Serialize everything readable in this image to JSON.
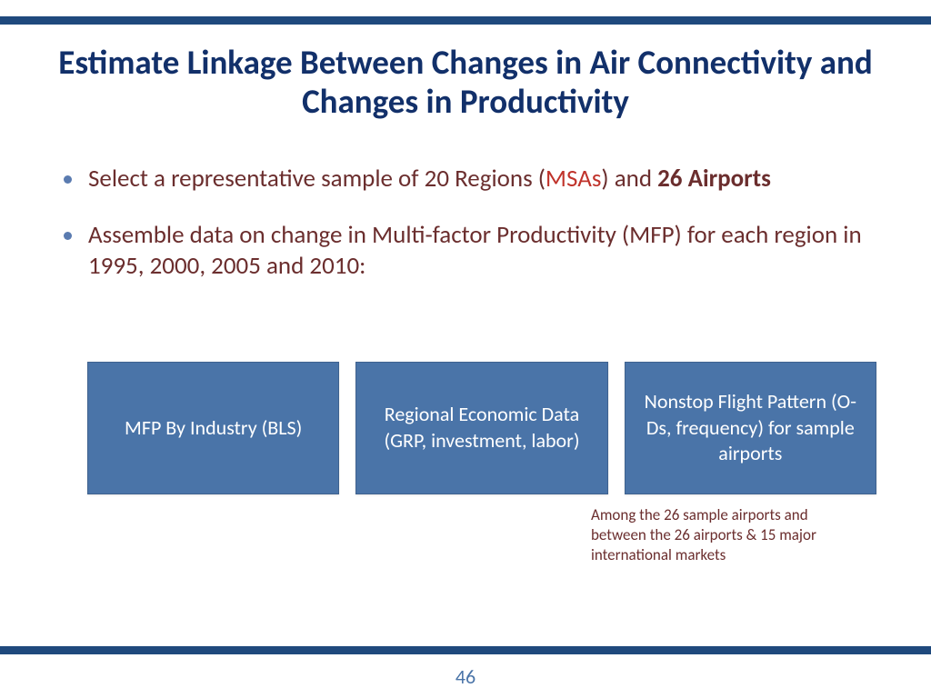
{
  "colors": {
    "bar": "#1f497d",
    "title": "#12306a",
    "bullet_dot": "#5a7bb0",
    "body_text": "#6b2e2e",
    "highlight": "#c0332b",
    "box_bg": "#4a74a8",
    "page_num": "#4a74a8",
    "white": "#ffffff"
  },
  "typography": {
    "title_size": 37,
    "body_size": 27,
    "box_size": 22,
    "footnote_size": 17,
    "page_num_size": 22
  },
  "title": "Estimate Linkage Between Changes in Air Connectivity and Changes in Productivity",
  "bullets": [
    {
      "parts": [
        {
          "text": "Select a  representative sample of 20 Regions (",
          "bold": false,
          "highlight": false
        },
        {
          "text": "MSAs",
          "bold": false,
          "highlight": true
        },
        {
          "text": ") and ",
          "bold": false,
          "highlight": false
        },
        {
          "text": "26 Airports",
          "bold": true,
          "highlight": false
        }
      ]
    },
    {
      "parts": [
        {
          "text": "Assemble data on change in Multi-factor Productivity (MFP) for each region in 1995, 2000, 2005 and 2010:",
          "bold": false,
          "highlight": false
        }
      ]
    }
  ],
  "boxes": [
    "MFP By Industry (BLS)",
    "Regional Economic Data (GRP, investment, labor)",
    "Nonstop Flight Pattern (O-Ds, frequency) for sample airports"
  ],
  "footnote": "Among the 26 sample airports and between the 26 airports & 15 major international markets",
  "page_number": "46"
}
